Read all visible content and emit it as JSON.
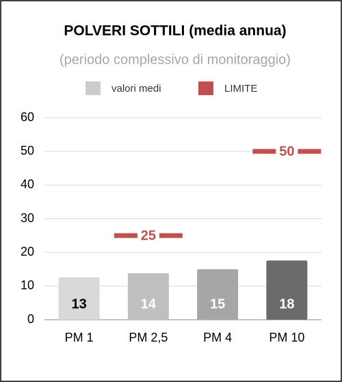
{
  "chart_data": {
    "type": "bar",
    "title": "POLVERI SOTTILI (media annua)",
    "subtitle": "(periodo complessivo di monitoraggio)",
    "categories": [
      "PM 1",
      "PM 2,5",
      "PM 4",
      "PM 10"
    ],
    "series": [
      {
        "name": "valori medi",
        "color": "#cccccc",
        "bar_colors": [
          "#d9d9d9",
          "#bfbfbf",
          "#a6a6a6",
          "#6b6b6b"
        ],
        "values": [
          12.6,
          13.8,
          15.0,
          17.6
        ],
        "value_labels": [
          "13",
          "14",
          "15",
          "18"
        ]
      },
      {
        "name": "LIMITE",
        "color": "#c0504d",
        "values": [
          null,
          25,
          null,
          50
        ]
      }
    ],
    "ylim": [
      0,
      60
    ],
    "yticks": [
      0,
      10,
      20,
      30,
      40,
      50,
      60
    ],
    "grid": true
  }
}
